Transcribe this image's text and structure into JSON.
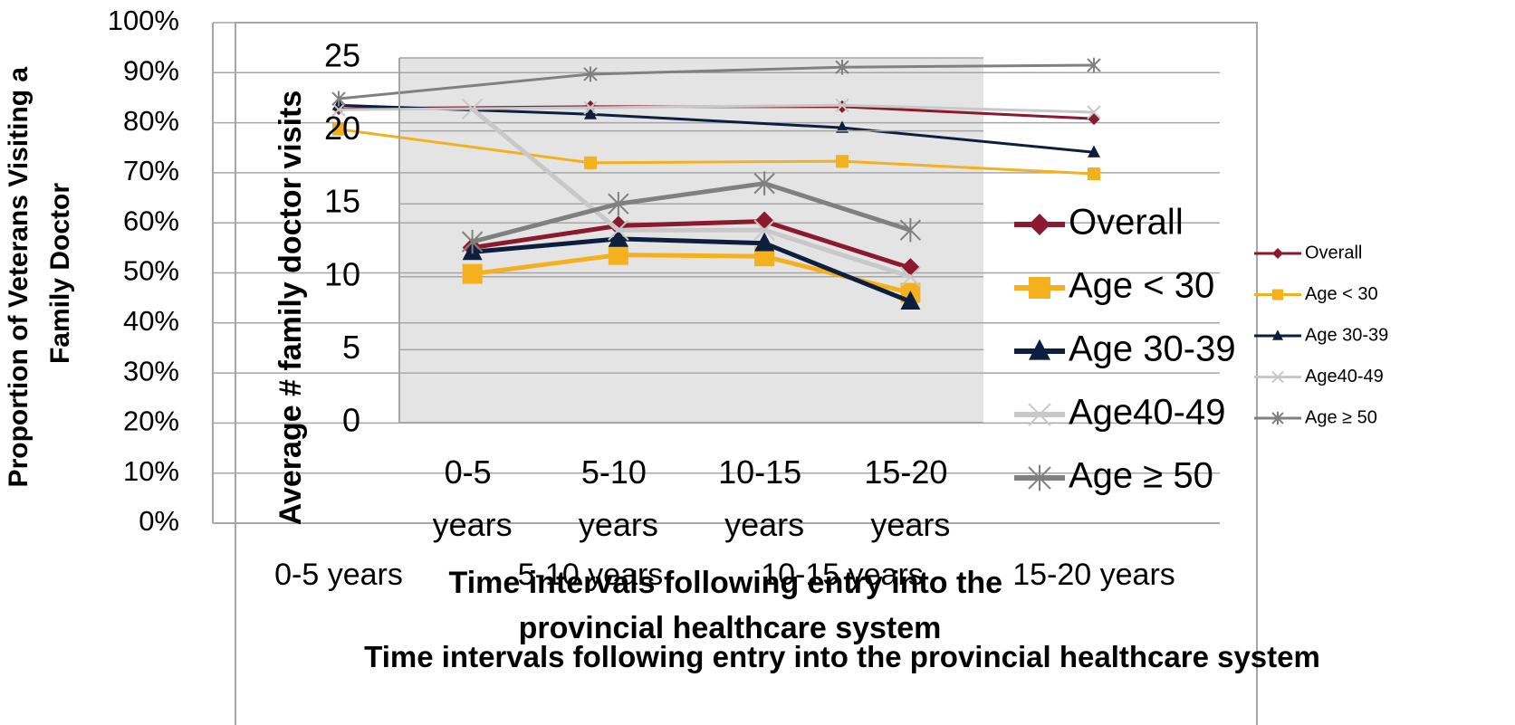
{
  "chart_data": [
    {
      "type": "line",
      "y_label": "Proportion of Veterans Visiting a Family Doctor",
      "x_label": "Time intervals following entry into the provincial healthcare system",
      "categories": [
        "0-5 years",
        "5-10 years",
        "10-15 years",
        "15-20 years"
      ],
      "ylim": [
        0,
        100
      ],
      "yticks": [
        {
          "value": 0,
          "label": "0%"
        },
        {
          "value": 10,
          "label": "10%"
        },
        {
          "value": 20,
          "label": "20%"
        },
        {
          "value": 30,
          "label": "30%"
        },
        {
          "value": 40,
          "label": "40%"
        },
        {
          "value": 50,
          "label": "50%"
        },
        {
          "value": 60,
          "label": "60%"
        },
        {
          "value": 70,
          "label": "70%"
        },
        {
          "value": 80,
          "label": "80%"
        },
        {
          "value": 90,
          "label": "90%"
        },
        {
          "value": 100,
          "label": "100%"
        }
      ],
      "grid": true,
      "legend": "right",
      "series": [
        {
          "name": "Overall",
          "color": "#8b1a2f",
          "marker": "diamond",
          "values": [
            82.8,
            83.2,
            83.2,
            80.8
          ]
        },
        {
          "name": "Age < 30",
          "color": "#f5b01e",
          "marker": "square",
          "values": [
            78.7,
            72.0,
            72.3,
            69.8
          ]
        },
        {
          "name": "Age 30-39",
          "color": "#0c1f3f",
          "marker": "triangle",
          "values": [
            83.5,
            81.7,
            79.0,
            74.1
          ]
        },
        {
          "name": "Age40-49",
          "color": "#c8c8c8",
          "marker": "x",
          "values": [
            82.6,
            83.0,
            83.5,
            82.1
          ]
        },
        {
          "name": "Age ≥ 50",
          "color": "#808080",
          "marker": "star",
          "values": [
            84.8,
            89.7,
            91.1,
            91.5
          ]
        }
      ]
    },
    {
      "type": "line",
      "y_label": "Average # family doctor visits",
      "x_label": "Time intervals following entry into the provincial healthcare system",
      "categories": [
        "0-5 years",
        "5-10 years",
        "10-15 years",
        "15-20 years"
      ],
      "ylim": [
        0,
        25
      ],
      "yticks": [
        0,
        5,
        10,
        15,
        20,
        25
      ],
      "grid": true,
      "legend": "right",
      "series": [
        {
          "name": "Overall",
          "color": "#8b1a2f",
          "marker": "diamond",
          "values": [
            12.0,
            13.5,
            13.8,
            10.6
          ]
        },
        {
          "name": "Age < 30",
          "color": "#f5b01e",
          "marker": "square",
          "values": [
            10.2,
            11.5,
            11.4,
            8.9
          ]
        },
        {
          "name": "Age 30-39",
          "color": "#0c1f3f",
          "marker": "triangle",
          "values": [
            11.7,
            12.6,
            12.3,
            8.3
          ]
        },
        {
          "name": "Age40-49",
          "color": "#c8c8c8",
          "marker": "x",
          "values": [
            21.5,
            13.2,
            13.2,
            10.0
          ]
        },
        {
          "name": "Age ≥ 50",
          "color": "#808080",
          "marker": "star",
          "values": [
            12.4,
            15.0,
            16.4,
            13.2
          ]
        }
      ]
    }
  ]
}
